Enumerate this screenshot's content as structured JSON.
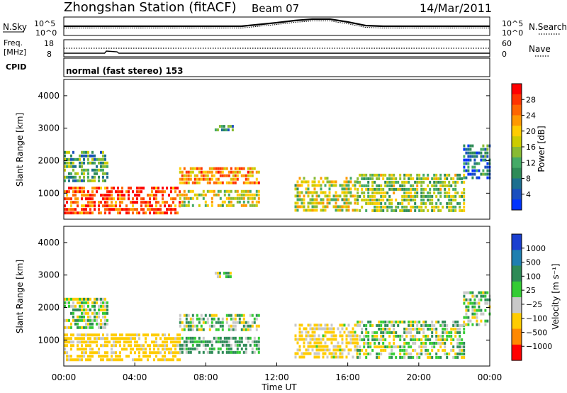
{
  "header": {
    "title": "Zhongshan Station (fitACF)",
    "beam": "Beam 07",
    "date": "14/Mar/2011"
  },
  "noise_panel": {
    "left_label": "N.Sky",
    "right_label": "N.Search",
    "left_ticks": [
      "10^5",
      "10^0"
    ],
    "right_ticks": [
      "10^5",
      "10^0"
    ]
  },
  "freq_panel": {
    "left_label_line1": "Freq.",
    "left_label_line2": "[MHz]",
    "left_ticks": [
      "18",
      "8"
    ],
    "right_label": "Nave",
    "right_ticks": [
      "60",
      "0"
    ]
  },
  "cpid_panel": {
    "label": "CPID",
    "mode_text": "normal (fast stereo) 153"
  },
  "power_panel": {
    "ylabel": "Slant Range [km]",
    "y_ticks": [
      "4000",
      "3000",
      "2000",
      "1000"
    ],
    "colorbar_label": "Power [dB]",
    "colorbar_ticks": [
      "28",
      "24",
      "20",
      "16",
      "12",
      "8",
      "4"
    ],
    "colorbar_colors": [
      "#ff0000",
      "#ff3300",
      "#ff6600",
      "#ff9900",
      "#ffcc00",
      "#cccc00",
      "#88bb33",
      "#44aa66",
      "#2e8b57",
      "#1d6f8f",
      "#1a4fbf",
      "#0033ff"
    ]
  },
  "velocity_panel": {
    "ylabel": "Slant Range [km]",
    "y_ticks": [
      "4000",
      "3000",
      "2000",
      "1000"
    ],
    "colorbar_label": "Velocity [m s⁻¹]",
    "colorbar_ticks": [
      "1000",
      "500",
      "100",
      "25",
      "−25",
      "−100",
      "−500",
      "−1000"
    ],
    "colorbar_colors": [
      "#1a3fd0",
      "#1f7fb0",
      "#2e8b57",
      "#33cc33",
      "#c8c8c8",
      "#ffcc00",
      "#ff8800",
      "#ff0000"
    ]
  },
  "x_axis": {
    "ticks": [
      "00:00",
      "04:00",
      "08:00",
      "12:00",
      "16:00",
      "20:00",
      "00:00"
    ],
    "label": "Time UT"
  },
  "chart_data": [
    {
      "type": "line",
      "title": "Zhongshan Station (fitACF)",
      "x": [
        0,
        2,
        4,
        6,
        8,
        10,
        12,
        13,
        14,
        15,
        16,
        17,
        18,
        20,
        22,
        24
      ],
      "series": [
        {
          "values": [
            0.5,
            0.5,
            0.5,
            0.5,
            0.5,
            0.5,
            0.75,
            0.9,
            1.0,
            1.0,
            0.8,
            0.55,
            0.5,
            0.5,
            0.5,
            0.5
          ]
        }
      ],
      "xlabel": "Time UT",
      "xlim": [
        0,
        24
      ]
    },
    {
      "type": "heatmap",
      "xlabel": "Time UT",
      "ylabel": "Slant Range [km]",
      "xlim": [
        0,
        24
      ],
      "ylim": [
        200,
        4500
      ],
      "colorbar_label": "Power [dB]",
      "colorbar_range": [
        0,
        30
      ],
      "blobs": [
        {
          "t0": 0.0,
          "t1": 6.5,
          "r0": 400,
          "r1": 1200,
          "value": 26
        },
        {
          "t0": 0.0,
          "t1": 2.5,
          "r0": 1400,
          "r1": 2300,
          "value": 10
        },
        {
          "t0": 6.5,
          "t1": 11.0,
          "r0": 1350,
          "r1": 1800,
          "value": 22
        },
        {
          "t0": 6.5,
          "t1": 11.0,
          "r0": 600,
          "r1": 1100,
          "value": 16
        },
        {
          "t0": 8.5,
          "t1": 9.5,
          "r0": 2900,
          "r1": 3100,
          "value": 8
        },
        {
          "t0": 13.0,
          "t1": 16.5,
          "r0": 500,
          "r1": 1500,
          "value": 16
        },
        {
          "t0": 16.5,
          "t1": 22.5,
          "r0": 400,
          "r1": 1600,
          "value": 14
        },
        {
          "t0": 22.5,
          "t1": 24.0,
          "r0": 1500,
          "r1": 2500,
          "value": 6
        }
      ]
    },
    {
      "type": "heatmap",
      "xlabel": "Time UT",
      "ylabel": "Slant Range [km]",
      "xlim": [
        0,
        24
      ],
      "ylim": [
        200,
        4500
      ],
      "colorbar_label": "Velocity [m s⁻¹]",
      "colorbar_range": [
        -1000,
        1000
      ],
      "blobs": [
        {
          "t0": 0.0,
          "t1": 6.5,
          "r0": 400,
          "r1": 1200,
          "value": -150
        },
        {
          "t0": 0.0,
          "t1": 2.5,
          "r0": 1400,
          "r1": 2300,
          "value": 0
        },
        {
          "t0": 6.5,
          "t1": 11.0,
          "r0": 1350,
          "r1": 1800,
          "value": 0
        },
        {
          "t0": 6.5,
          "t1": 11.0,
          "r0": 600,
          "r1": 1100,
          "value": 80
        },
        {
          "t0": 8.5,
          "t1": 9.5,
          "r0": 2900,
          "r1": 3100,
          "value": 0
        },
        {
          "t0": 13.0,
          "t1": 16.5,
          "r0": 500,
          "r1": 1500,
          "value": -120
        },
        {
          "t0": 16.5,
          "t1": 22.5,
          "r0": 400,
          "r1": 1600,
          "value": 0
        },
        {
          "t0": 22.5,
          "t1": 24.0,
          "r0": 1500,
          "r1": 2500,
          "value": 0
        }
      ]
    }
  ]
}
